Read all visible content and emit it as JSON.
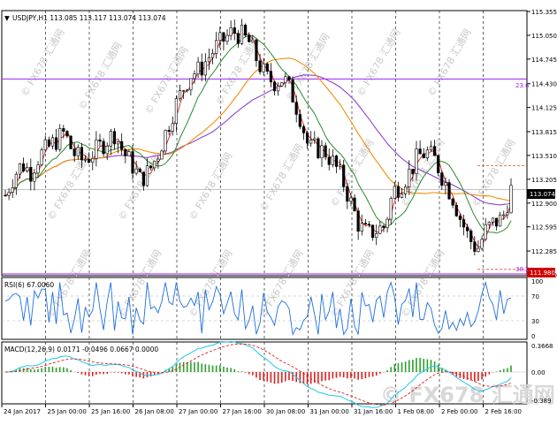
{
  "header": {
    "symbol_line": "USDJPY,H1  113.085 113.117 113.074 113.074",
    "rsi_label": "RSI(6) 67.0060",
    "macd_label": "MACD(12,26,9) 0.0171 -0.0496 0.0667 0.0000"
  },
  "watermark": "FX678 汇通网",
  "price_panel": {
    "ticks": [
      "115.355",
      "115.050",
      "114.745",
      "114.430",
      "114.125",
      "113.815",
      "113.510",
      "113.205",
      "112.900",
      "112.595",
      "112.285",
      "111.980"
    ],
    "current_price": "113.074",
    "low_label": "111.980",
    "fib_upper": "23.6",
    "fib_lower": "38.2"
  },
  "rsi_panel": {
    "ticks": [
      "100",
      "70",
      "30",
      "0"
    ]
  },
  "macd_panel": {
    "ticks": [
      "0.3668",
      "0.00",
      "-0.389"
    ]
  },
  "x_axis": {
    "labels": [
      "24 Jan 2017",
      "25 Jan 00:00",
      "25 Jan 16:00",
      "26 Jan 08:00",
      "27 Jan 00:00",
      "27 Jan 16:00",
      "30 Jan 08:00",
      "31 Jan 00:00",
      "31 Jan 16:00",
      "1 Feb 08:00",
      "2 Feb 00:00",
      "2 Feb 16:00"
    ]
  },
  "colors": {
    "bull": "#000000",
    "bear": "#000000",
    "ma_fast": "#d62020",
    "ma_mid": "#2c8a2c",
    "ma_orange": "#f0900a",
    "ma_purple": "#8e44cf",
    "fib": "#a020f0",
    "rsi": "#1e6fe0",
    "macd_line": "#20c8e8",
    "signal": "#e02020",
    "hist_pos": "#2ea02e",
    "hist_neg": "#e02020",
    "price_box": "#000000",
    "low_box": "#d00000"
  },
  "chart_data": {
    "type": "candlestick",
    "symbol": "USDJPY",
    "timeframe": "H1",
    "ylim": [
      111.98,
      115.355
    ],
    "close_series": [
      113.0,
      113.25,
      113.4,
      113.3,
      113.5,
      113.6,
      113.7,
      113.8,
      113.55,
      113.45,
      113.5,
      113.6,
      113.7,
      113.8,
      113.55,
      113.4,
      113.2,
      113.3,
      113.5,
      113.8,
      114.1,
      114.35,
      114.55,
      114.6,
      114.75,
      114.9,
      115.0,
      115.1,
      115.05,
      114.95,
      114.7,
      114.5,
      114.45,
      114.5,
      114.3,
      114.0,
      113.6,
      113.6,
      113.55,
      113.4,
      113.2,
      112.9,
      112.6,
      112.5,
      112.55,
      112.6,
      113.05,
      113.15,
      113.3,
      113.5,
      113.55,
      113.45,
      113.2,
      113.0,
      112.7,
      112.45,
      112.3,
      112.55,
      112.65,
      112.7,
      113.07
    ],
    "fib_levels": [
      {
        "label": "23.6",
        "price": 114.49
      },
      {
        "label": "38.2",
        "price": 111.98
      }
    ],
    "rsi": {
      "period": 6,
      "last": 67.006,
      "levels": [
        70,
        30
      ],
      "ylim": [
        0,
        100
      ]
    },
    "macd": {
      "params": [
        12,
        26,
        9
      ],
      "values": [
        0.0171,
        -0.0496,
        0.0667
      ],
      "ylim": [
        -0.389,
        0.3668
      ]
    }
  }
}
